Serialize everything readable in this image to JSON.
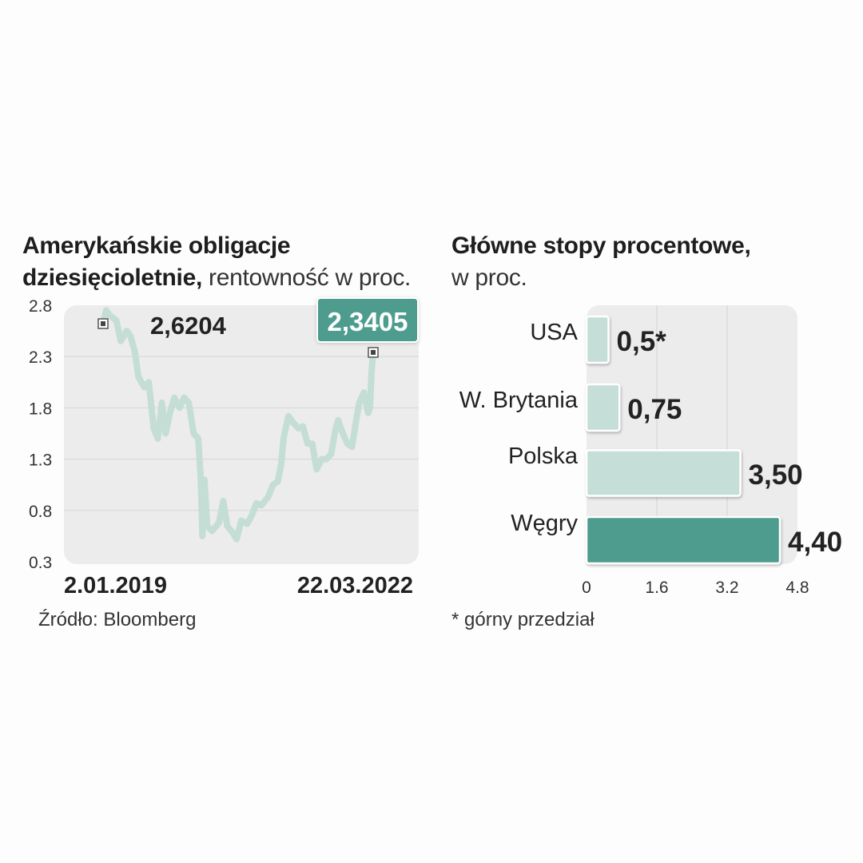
{
  "left_chart": {
    "title_bold_1": "Amerykańskie obligacje",
    "title_bold_2": "dziesięcioletnie,",
    "title_normal": " rentowność w proc.",
    "source": "Źródło: Bloomberg"
  },
  "right_chart": {
    "title_bold": "Główne stopy procentowe,",
    "title_normal": "w proc.",
    "footnote": "* górny przedział"
  },
  "colors": {
    "line": "#c4ded5",
    "bar_light": "#c6ded8",
    "bar_highlight": "#4e9c8e",
    "panel": "#ececec",
    "callout": "#4e9c8e"
  },
  "chart_data": [
    {
      "type": "line",
      "title": "Amerykańskie obligacje dziesięcioletnie, rentowność w proc.",
      "x_labels": [
        "2.01.2019",
        "22.03.2022"
      ],
      "x_range": [
        "2019-01-02",
        "2022-03-22"
      ],
      "ylim": [
        0.3,
        2.8
      ],
      "y_ticks": [
        "2.8",
        "2.3",
        "1.8",
        "1.3",
        "0.8",
        "0.3"
      ],
      "grid": true,
      "start_value": 2.6204,
      "start_label": "2,6204",
      "end_value": 2.3405,
      "end_label": "2,3405",
      "series": [
        {
          "x": [
            "2019-01-02",
            "2019-01-15",
            "2019-02-01",
            "2019-03-01",
            "2019-03-20",
            "2019-04-15",
            "2019-05-01",
            "2019-05-20",
            "2019-06-05",
            "2019-07-01",
            "2019-07-20",
            "2019-08-10",
            "2019-08-28",
            "2019-09-15",
            "2019-10-01",
            "2019-10-20",
            "2019-11-08",
            "2019-12-01",
            "2019-12-20",
            "2020-01-10",
            "2020-01-31",
            "2020-02-20",
            "2020-03-02",
            "2020-03-09",
            "2020-03-18",
            "2020-03-30",
            "2020-04-20",
            "2020-05-20",
            "2020-06-08",
            "2020-06-25",
            "2020-07-20",
            "2020-08-05",
            "2020-08-25",
            "2020-09-20",
            "2020-10-10",
            "2020-10-30",
            "2020-11-20",
            "2020-12-20",
            "2021-01-10",
            "2021-01-31",
            "2021-02-15",
            "2021-02-25",
            "2021-03-18",
            "2021-04-10",
            "2021-05-01",
            "2021-05-20",
            "2021-06-10",
            "2021-06-30",
            "2021-07-19",
            "2021-08-10",
            "2021-08-31",
            "2021-09-20",
            "2021-10-10",
            "2021-10-21",
            "2021-11-10",
            "2021-11-30",
            "2021-12-20",
            "2022-01-05",
            "2022-01-20",
            "2022-02-10",
            "2022-02-28",
            "2022-03-08",
            "2022-03-15",
            "2022-03-22"
          ],
          "values": [
            2.62,
            2.75,
            2.7,
            2.65,
            2.45,
            2.55,
            2.5,
            2.35,
            2.1,
            2.0,
            2.05,
            1.6,
            1.5,
            1.85,
            1.55,
            1.75,
            1.9,
            1.8,
            1.9,
            1.85,
            1.55,
            1.5,
            1.1,
            0.55,
            1.1,
            0.65,
            0.6,
            0.68,
            0.89,
            0.65,
            0.58,
            0.52,
            0.7,
            0.67,
            0.75,
            0.87,
            0.85,
            0.93,
            1.05,
            1.08,
            1.25,
            1.5,
            1.72,
            1.65,
            1.6,
            1.62,
            1.45,
            1.45,
            1.2,
            1.3,
            1.3,
            1.35,
            1.6,
            1.68,
            1.55,
            1.45,
            1.42,
            1.65,
            1.85,
            1.95,
            1.75,
            1.8,
            2.15,
            2.34
          ]
        }
      ]
    },
    {
      "type": "bar",
      "orientation": "horizontal",
      "title": "Główne stopy procentowe, w proc.",
      "categories": [
        "USA",
        "W. Brytania",
        "Polska",
        "Węgry"
      ],
      "values": [
        0.5,
        0.75,
        3.5,
        4.4
      ],
      "labels": [
        "0,5*",
        "0,75",
        "3,50",
        "4,40"
      ],
      "highlight": "Węgry",
      "xlim": [
        0,
        4.8
      ],
      "x_ticks": [
        "0",
        "1.6",
        "3.2",
        "4.8"
      ],
      "grid": true
    }
  ]
}
